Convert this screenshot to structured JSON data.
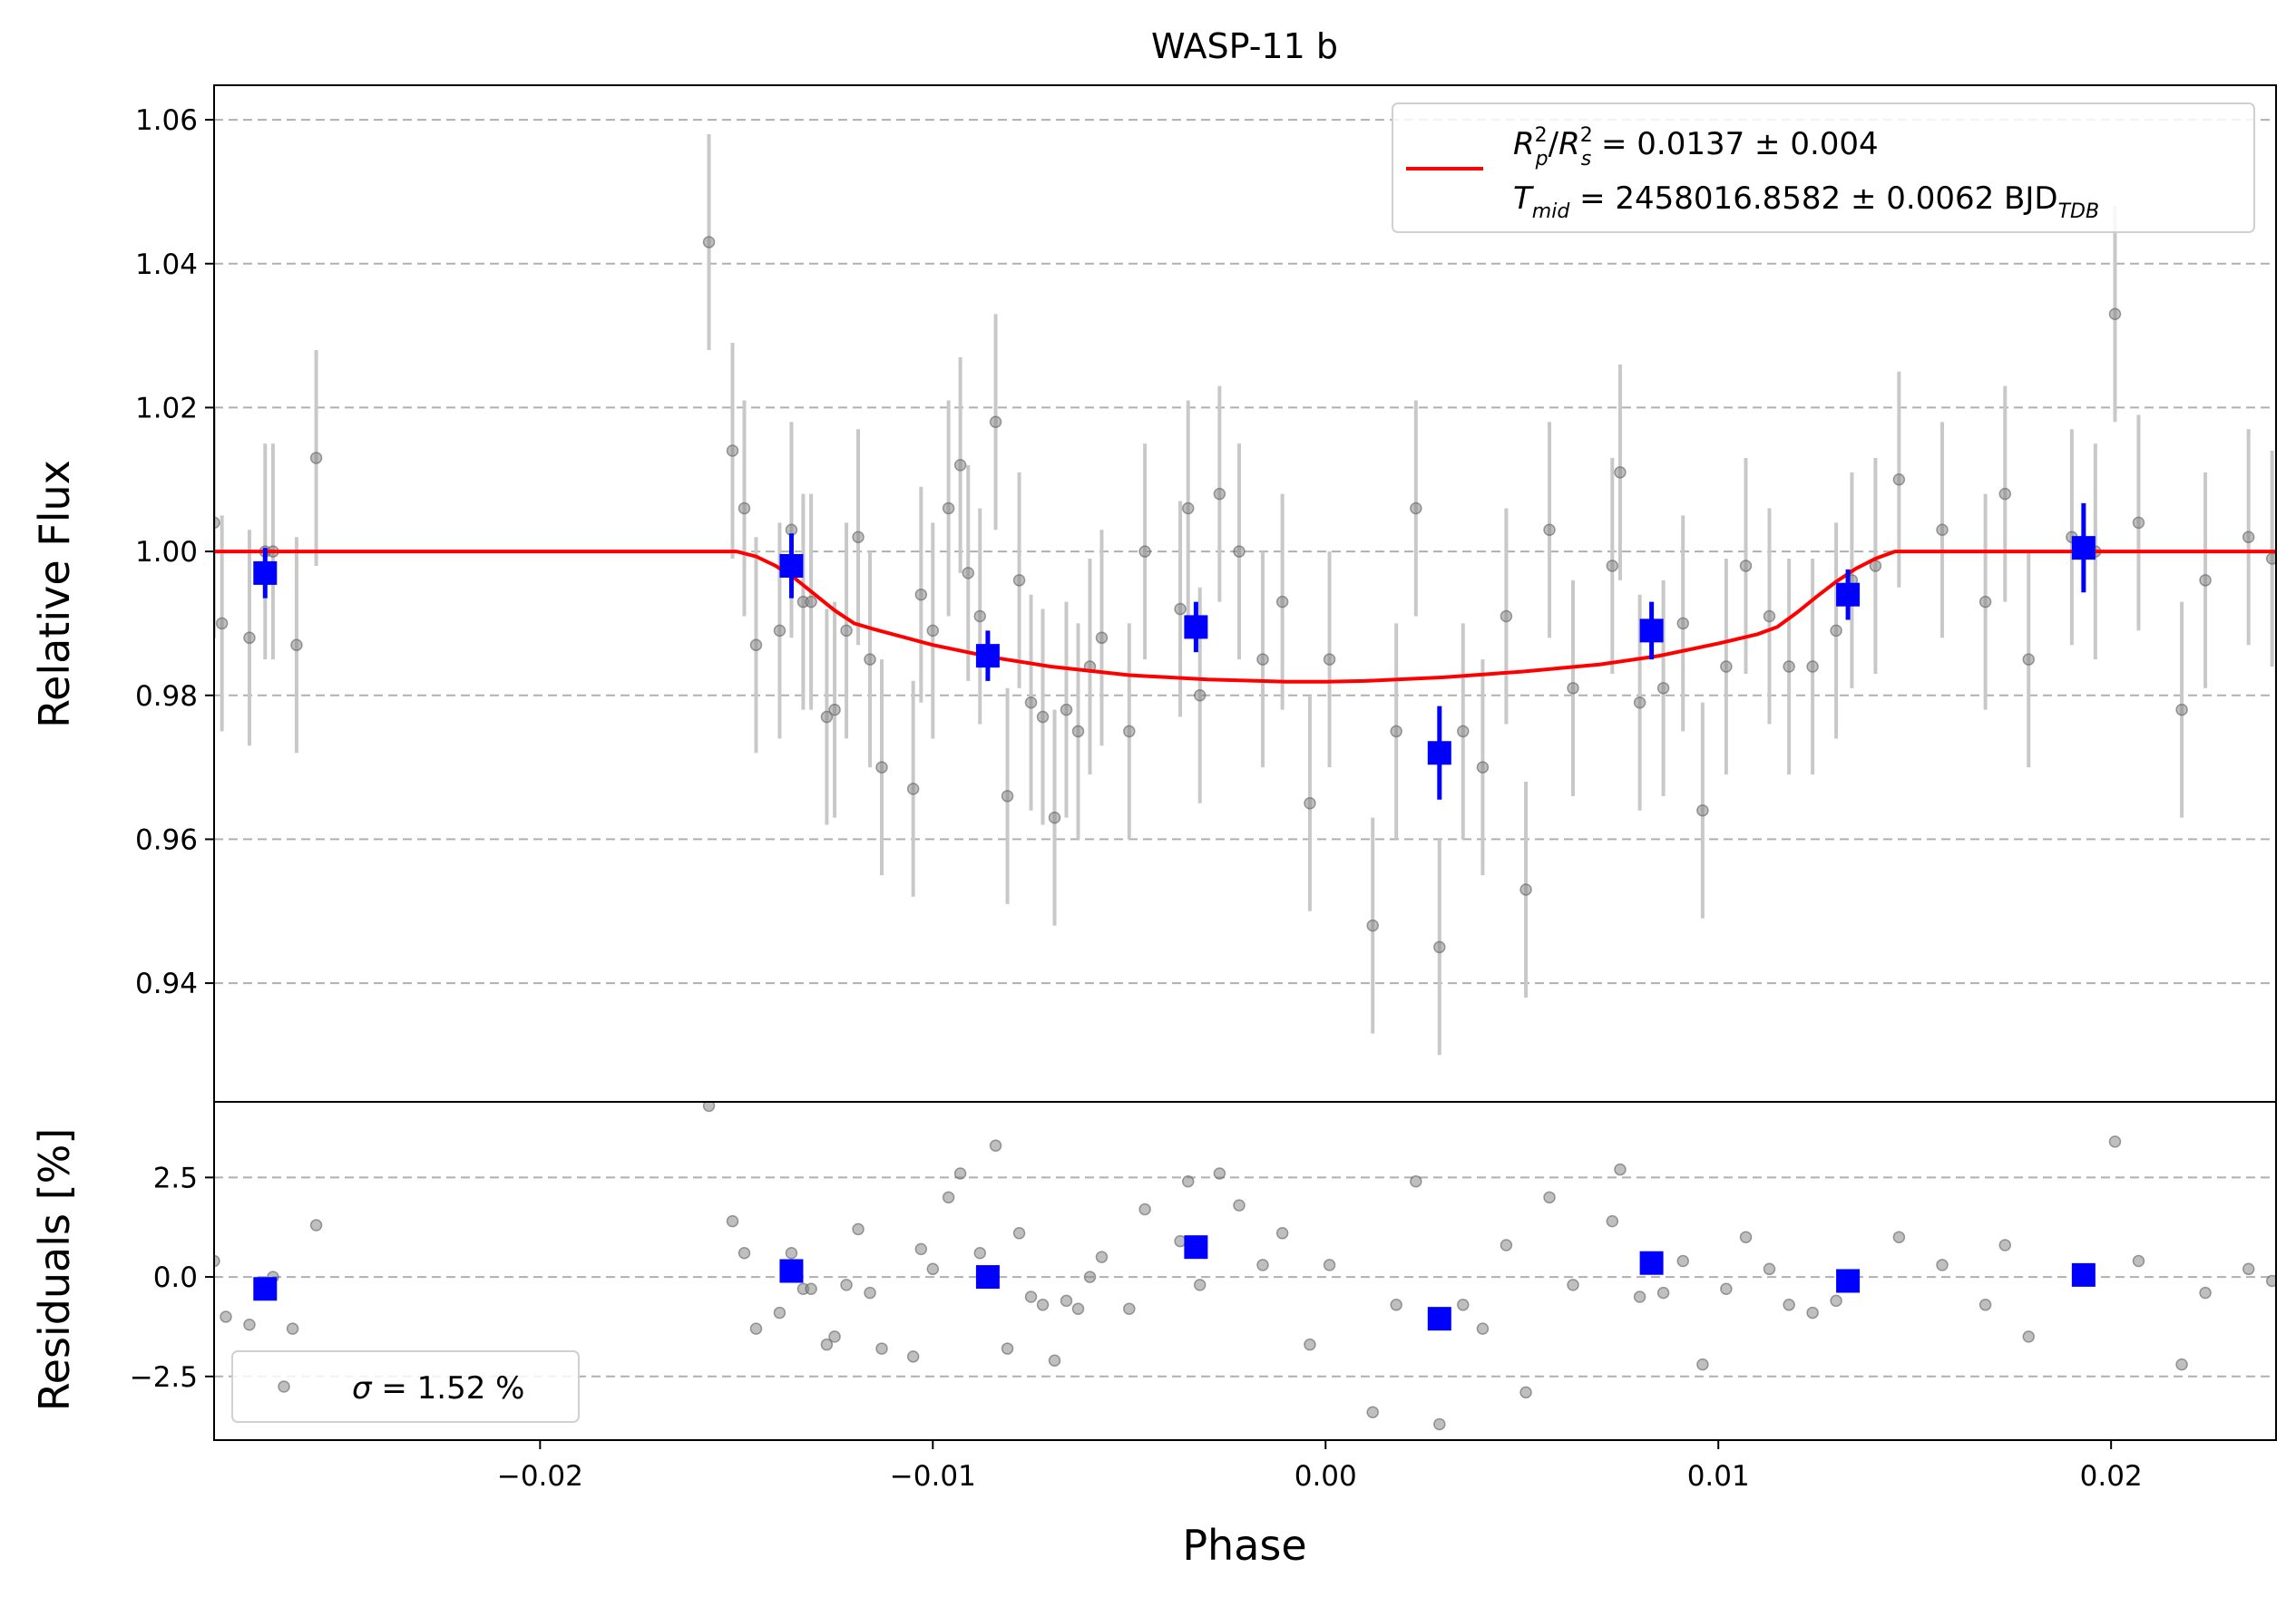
{
  "chart_data": {
    "type": "scatter",
    "title": "WASP-11 b",
    "xlabel": "Phase",
    "xlim": [
      -0.0283,
      0.0242
    ],
    "xticks": [
      -0.02,
      -0.01,
      0.0,
      0.01,
      0.02
    ],
    "xtick_labels": [
      "−0.02",
      "−0.01",
      "0.00",
      "0.01",
      "0.02"
    ],
    "grid": "horizontal dashed",
    "colors": {
      "raw": "#808080",
      "raw_err": "#c8c8c8",
      "binned": "#0000ff",
      "model": "#ff0000"
    },
    "top_panel": {
      "ylabel": "Relative Flux",
      "ylim": [
        0.9235,
        1.0648
      ],
      "yticks": [
        0.94,
        0.96,
        0.98,
        1.0,
        1.02,
        1.04,
        1.06
      ],
      "ytick_labels": [
        "0.94",
        "0.96",
        "0.98",
        "1.00",
        "1.02",
        "1.04",
        "1.06"
      ],
      "legend": {
        "placement": "top-right",
        "line1": {
          "var": "R",
          "sub1": "p",
          "sup1": "2",
          "sub2": "s",
          "sup2": "2",
          "rest": " = 0.0137 ± 0.004"
        },
        "line2": {
          "var": "T",
          "sub": "mid",
          "rest": " = 2458016.8582 ± 0.0062 BJD",
          "unit_sub": "TDB"
        }
      },
      "raw_points": [
        {
          "x": -0.0283,
          "y": 1.004,
          "err": 0.016
        },
        {
          "x": -0.0281,
          "y": 0.99,
          "err": 0.015
        },
        {
          "x": -0.0274,
          "y": 0.988,
          "err": 0.015
        },
        {
          "x": -0.027,
          "y": 1.0,
          "err": 0.015
        },
        {
          "x": -0.0268,
          "y": 1.0,
          "err": 0.015
        },
        {
          "x": -0.0262,
          "y": 0.987,
          "err": 0.015
        },
        {
          "x": -0.0257,
          "y": 1.013,
          "err": 0.015
        },
        {
          "x": -0.0157,
          "y": 1.043,
          "err": 0.015
        },
        {
          "x": -0.0151,
          "y": 1.014,
          "err": 0.015
        },
        {
          "x": -0.0148,
          "y": 1.006,
          "err": 0.015
        },
        {
          "x": -0.0145,
          "y": 0.987,
          "err": 0.015
        },
        {
          "x": -0.0139,
          "y": 0.989,
          "err": 0.015
        },
        {
          "x": -0.0136,
          "y": 1.003,
          "err": 0.015
        },
        {
          "x": -0.0133,
          "y": 0.993,
          "err": 0.015
        },
        {
          "x": -0.0131,
          "y": 0.993,
          "err": 0.015
        },
        {
          "x": -0.0127,
          "y": 0.977,
          "err": 0.015
        },
        {
          "x": -0.0125,
          "y": 0.978,
          "err": 0.015
        },
        {
          "x": -0.0122,
          "y": 0.989,
          "err": 0.015
        },
        {
          "x": -0.0119,
          "y": 1.002,
          "err": 0.015
        },
        {
          "x": -0.0116,
          "y": 0.985,
          "err": 0.015
        },
        {
          "x": -0.0113,
          "y": 0.97,
          "err": 0.015
        },
        {
          "x": -0.0105,
          "y": 0.967,
          "err": 0.015
        },
        {
          "x": -0.0103,
          "y": 0.994,
          "err": 0.015
        },
        {
          "x": -0.01,
          "y": 0.989,
          "err": 0.015
        },
        {
          "x": -0.0096,
          "y": 1.006,
          "err": 0.015
        },
        {
          "x": -0.0093,
          "y": 1.012,
          "err": 0.015
        },
        {
          "x": -0.0091,
          "y": 0.997,
          "err": 0.015
        },
        {
          "x": -0.0088,
          "y": 0.991,
          "err": 0.015
        },
        {
          "x": -0.0084,
          "y": 1.018,
          "err": 0.015
        },
        {
          "x": -0.0081,
          "y": 0.966,
          "err": 0.015
        },
        {
          "x": -0.0078,
          "y": 0.996,
          "err": 0.015
        },
        {
          "x": -0.0075,
          "y": 0.979,
          "err": 0.015
        },
        {
          "x": -0.0072,
          "y": 0.977,
          "err": 0.015
        },
        {
          "x": -0.0069,
          "y": 0.963,
          "err": 0.015
        },
        {
          "x": -0.0066,
          "y": 0.978,
          "err": 0.015
        },
        {
          "x": -0.0063,
          "y": 0.975,
          "err": 0.015
        },
        {
          "x": -0.006,
          "y": 0.984,
          "err": 0.015
        },
        {
          "x": -0.0057,
          "y": 0.988,
          "err": 0.015
        },
        {
          "x": -0.005,
          "y": 0.975,
          "err": 0.015
        },
        {
          "x": -0.0046,
          "y": 1.0,
          "err": 0.015
        },
        {
          "x": -0.0037,
          "y": 0.992,
          "err": 0.015
        },
        {
          "x": -0.0035,
          "y": 1.006,
          "err": 0.015
        },
        {
          "x": -0.0032,
          "y": 0.98,
          "err": 0.015
        },
        {
          "x": -0.0027,
          "y": 1.008,
          "err": 0.015
        },
        {
          "x": -0.0022,
          "y": 1.0,
          "err": 0.015
        },
        {
          "x": -0.0016,
          "y": 0.985,
          "err": 0.015
        },
        {
          "x": -0.0011,
          "y": 0.993,
          "err": 0.015
        },
        {
          "x": -0.0004,
          "y": 0.965,
          "err": 0.015
        },
        {
          "x": 0.0001,
          "y": 0.985,
          "err": 0.015
        },
        {
          "x": 0.0012,
          "y": 0.948,
          "err": 0.015
        },
        {
          "x": 0.0018,
          "y": 0.975,
          "err": 0.015
        },
        {
          "x": 0.0023,
          "y": 1.006,
          "err": 0.015
        },
        {
          "x": 0.0029,
          "y": 0.945,
          "err": 0.015
        },
        {
          "x": 0.0035,
          "y": 0.975,
          "err": 0.015
        },
        {
          "x": 0.004,
          "y": 0.97,
          "err": 0.015
        },
        {
          "x": 0.0046,
          "y": 0.991,
          "err": 0.015
        },
        {
          "x": 0.0051,
          "y": 0.953,
          "err": 0.015
        },
        {
          "x": 0.0057,
          "y": 1.003,
          "err": 0.015
        },
        {
          "x": 0.0063,
          "y": 0.981,
          "err": 0.015
        },
        {
          "x": 0.0073,
          "y": 0.998,
          "err": 0.015
        },
        {
          "x": 0.0075,
          "y": 1.011,
          "err": 0.015
        },
        {
          "x": 0.008,
          "y": 0.979,
          "err": 0.015
        },
        {
          "x": 0.0086,
          "y": 0.981,
          "err": 0.015
        },
        {
          "x": 0.0091,
          "y": 0.99,
          "err": 0.015
        },
        {
          "x": 0.0096,
          "y": 0.964,
          "err": 0.015
        },
        {
          "x": 0.0102,
          "y": 0.984,
          "err": 0.015
        },
        {
          "x": 0.0107,
          "y": 0.998,
          "err": 0.015
        },
        {
          "x": 0.0113,
          "y": 0.991,
          "err": 0.015
        },
        {
          "x": 0.0118,
          "y": 0.984,
          "err": 0.015
        },
        {
          "x": 0.0124,
          "y": 0.984,
          "err": 0.015
        },
        {
          "x": 0.013,
          "y": 0.989,
          "err": 0.015
        },
        {
          "x": 0.0134,
          "y": 0.996,
          "err": 0.015
        },
        {
          "x": 0.014,
          "y": 0.998,
          "err": 0.015
        },
        {
          "x": 0.0146,
          "y": 1.01,
          "err": 0.015
        },
        {
          "x": 0.0157,
          "y": 1.003,
          "err": 0.015
        },
        {
          "x": 0.0168,
          "y": 0.993,
          "err": 0.015
        },
        {
          "x": 0.0173,
          "y": 1.008,
          "err": 0.015
        },
        {
          "x": 0.0179,
          "y": 0.985,
          "err": 0.015
        },
        {
          "x": 0.019,
          "y": 1.002,
          "err": 0.015
        },
        {
          "x": 0.0196,
          "y": 1.0,
          "err": 0.015
        },
        {
          "x": 0.0201,
          "y": 1.033,
          "err": 0.015
        },
        {
          "x": 0.0207,
          "y": 1.004,
          "err": 0.015
        },
        {
          "x": 0.0218,
          "y": 0.978,
          "err": 0.015
        },
        {
          "x": 0.0224,
          "y": 0.996,
          "err": 0.015
        },
        {
          "x": 0.0235,
          "y": 1.002,
          "err": 0.015
        },
        {
          "x": 0.0241,
          "y": 0.999,
          "err": 0.015
        }
      ],
      "binned_points": [
        {
          "x": -0.027,
          "y": 0.997,
          "err": 0.0035
        },
        {
          "x": -0.0136,
          "y": 0.998,
          "err": 0.0045
        },
        {
          "x": -0.0086,
          "y": 0.9855,
          "err": 0.0035
        },
        {
          "x": -0.0033,
          "y": 0.9895,
          "err": 0.0035
        },
        {
          "x": 0.0029,
          "y": 0.972,
          "err": 0.0065
        },
        {
          "x": 0.0083,
          "y": 0.989,
          "err": 0.004
        },
        {
          "x": 0.0133,
          "y": 0.994,
          "err": 0.0035
        },
        {
          "x": 0.0193,
          "y": 1.0005,
          "err": 0.0062
        }
      ],
      "model": {
        "x": [
          -0.0283,
          -0.015,
          -0.0145,
          -0.014,
          -0.0135,
          -0.013,
          -0.0125,
          -0.012,
          -0.0115,
          -0.01,
          -0.0085,
          -0.007,
          -0.005,
          -0.003,
          -0.001,
          0.0,
          0.001,
          0.003,
          0.005,
          0.007,
          0.0085,
          0.01,
          0.011,
          0.0115,
          0.012,
          0.0125,
          0.013,
          0.0135,
          0.014,
          0.0145,
          0.015,
          0.0242
        ],
        "y": [
          1.0,
          1.0,
          0.9993,
          0.998,
          0.9962,
          0.994,
          0.9918,
          0.99,
          0.9892,
          0.987,
          0.9853,
          0.984,
          0.9828,
          0.9822,
          0.9819,
          0.9819,
          0.982,
          0.9825,
          0.9833,
          0.9843,
          0.9855,
          0.9872,
          0.9885,
          0.9895,
          0.9915,
          0.9937,
          0.9958,
          0.9976,
          0.999,
          1.0,
          1.0,
          1.0
        ]
      }
    },
    "bottom_panel": {
      "ylabel": "Residuals [%]",
      "ylim": [
        -4.1,
        4.4
      ],
      "yticks": [
        -2.5,
        0.0,
        2.5
      ],
      "ytick_labels": [
        "−2.5",
        "0.0",
        "2.5"
      ],
      "legend": {
        "placement": "bottom-left",
        "symbol": "σ",
        "rest": " = 1.52 %"
      },
      "raw_points": [
        {
          "x": -0.0283,
          "y": 0.4
        },
        {
          "x": -0.028,
          "y": -1.0
        },
        {
          "x": -0.0274,
          "y": -1.2
        },
        {
          "x": -0.0268,
          "y": 0.0
        },
        {
          "x": -0.0263,
          "y": -1.3
        },
        {
          "x": -0.0257,
          "y": 1.3
        },
        {
          "x": -0.0157,
          "y": 4.3
        },
        {
          "x": -0.0151,
          "y": 1.4
        },
        {
          "x": -0.0148,
          "y": 0.6
        },
        {
          "x": -0.0145,
          "y": -1.3
        },
        {
          "x": -0.0139,
          "y": -0.9
        },
        {
          "x": -0.0136,
          "y": 0.6
        },
        {
          "x": -0.0133,
          "y": -0.3
        },
        {
          "x": -0.0131,
          "y": -0.3
        },
        {
          "x": -0.0127,
          "y": -1.7
        },
        {
          "x": -0.0125,
          "y": -1.5
        },
        {
          "x": -0.0122,
          "y": -0.2
        },
        {
          "x": -0.0119,
          "y": 1.2
        },
        {
          "x": -0.0116,
          "y": -0.4
        },
        {
          "x": -0.0113,
          "y": -1.8
        },
        {
          "x": -0.0105,
          "y": -2.0
        },
        {
          "x": -0.0103,
          "y": 0.7
        },
        {
          "x": -0.01,
          "y": 0.2
        },
        {
          "x": -0.0096,
          "y": 2.0
        },
        {
          "x": -0.0093,
          "y": 2.6
        },
        {
          "x": -0.0088,
          "y": 0.6
        },
        {
          "x": -0.0084,
          "y": 3.3
        },
        {
          "x": -0.0081,
          "y": -1.8
        },
        {
          "x": -0.0078,
          "y": 1.1
        },
        {
          "x": -0.0075,
          "y": -0.5
        },
        {
          "x": -0.0072,
          "y": -0.7
        },
        {
          "x": -0.0069,
          "y": -2.1
        },
        {
          "x": -0.0066,
          "y": -0.6
        },
        {
          "x": -0.0063,
          "y": -0.8
        },
        {
          "x": -0.006,
          "y": 0.0
        },
        {
          "x": -0.0057,
          "y": 0.5
        },
        {
          "x": -0.005,
          "y": -0.8
        },
        {
          "x": -0.0046,
          "y": 1.7
        },
        {
          "x": -0.0037,
          "y": 0.9
        },
        {
          "x": -0.0035,
          "y": 2.4
        },
        {
          "x": -0.0032,
          "y": -0.2
        },
        {
          "x": -0.0027,
          "y": 2.6
        },
        {
          "x": -0.0022,
          "y": 1.8
        },
        {
          "x": -0.0016,
          "y": 0.3
        },
        {
          "x": -0.0011,
          "y": 1.1
        },
        {
          "x": -0.0004,
          "y": -1.7
        },
        {
          "x": 0.0001,
          "y": 0.3
        },
        {
          "x": 0.0012,
          "y": -3.4
        },
        {
          "x": 0.0018,
          "y": -0.7
        },
        {
          "x": 0.0023,
          "y": 2.4
        },
        {
          "x": 0.0029,
          "y": -3.7
        },
        {
          "x": 0.0035,
          "y": -0.7
        },
        {
          "x": 0.004,
          "y": -1.3
        },
        {
          "x": 0.0046,
          "y": 0.8
        },
        {
          "x": 0.0051,
          "y": -2.9
        },
        {
          "x": 0.0057,
          "y": 2.0
        },
        {
          "x": 0.0063,
          "y": -0.2
        },
        {
          "x": 0.0073,
          "y": 1.4
        },
        {
          "x": 0.0075,
          "y": 2.7
        },
        {
          "x": 0.008,
          "y": -0.5
        },
        {
          "x": 0.0086,
          "y": -0.4
        },
        {
          "x": 0.0091,
          "y": 0.4
        },
        {
          "x": 0.0096,
          "y": -2.2
        },
        {
          "x": 0.0102,
          "y": -0.3
        },
        {
          "x": 0.0107,
          "y": 1.0
        },
        {
          "x": 0.0113,
          "y": 0.2
        },
        {
          "x": 0.0118,
          "y": -0.7
        },
        {
          "x": 0.0124,
          "y": -0.9
        },
        {
          "x": 0.013,
          "y": -0.6
        },
        {
          "x": 0.0134,
          "y": 0.0
        },
        {
          "x": 0.0146,
          "y": 1.0
        },
        {
          "x": 0.0157,
          "y": 0.3
        },
        {
          "x": 0.0168,
          "y": -0.7
        },
        {
          "x": 0.0173,
          "y": 0.8
        },
        {
          "x": 0.0179,
          "y": -1.5
        },
        {
          "x": 0.0201,
          "y": 3.4
        },
        {
          "x": 0.0207,
          "y": 0.4
        },
        {
          "x": 0.0218,
          "y": -2.2
        },
        {
          "x": 0.0224,
          "y": -0.4
        },
        {
          "x": 0.0235,
          "y": 0.2
        },
        {
          "x": 0.0241,
          "y": -0.1
        }
      ],
      "binned_points": [
        {
          "x": -0.027,
          "y": -0.3
        },
        {
          "x": -0.0136,
          "y": 0.15
        },
        {
          "x": -0.0086,
          "y": 0.0
        },
        {
          "x": -0.0033,
          "y": 0.75
        },
        {
          "x": 0.0029,
          "y": -1.05
        },
        {
          "x": 0.0083,
          "y": 0.35
        },
        {
          "x": 0.0133,
          "y": -0.1
        },
        {
          "x": 0.0193,
          "y": 0.05
        }
      ]
    }
  }
}
